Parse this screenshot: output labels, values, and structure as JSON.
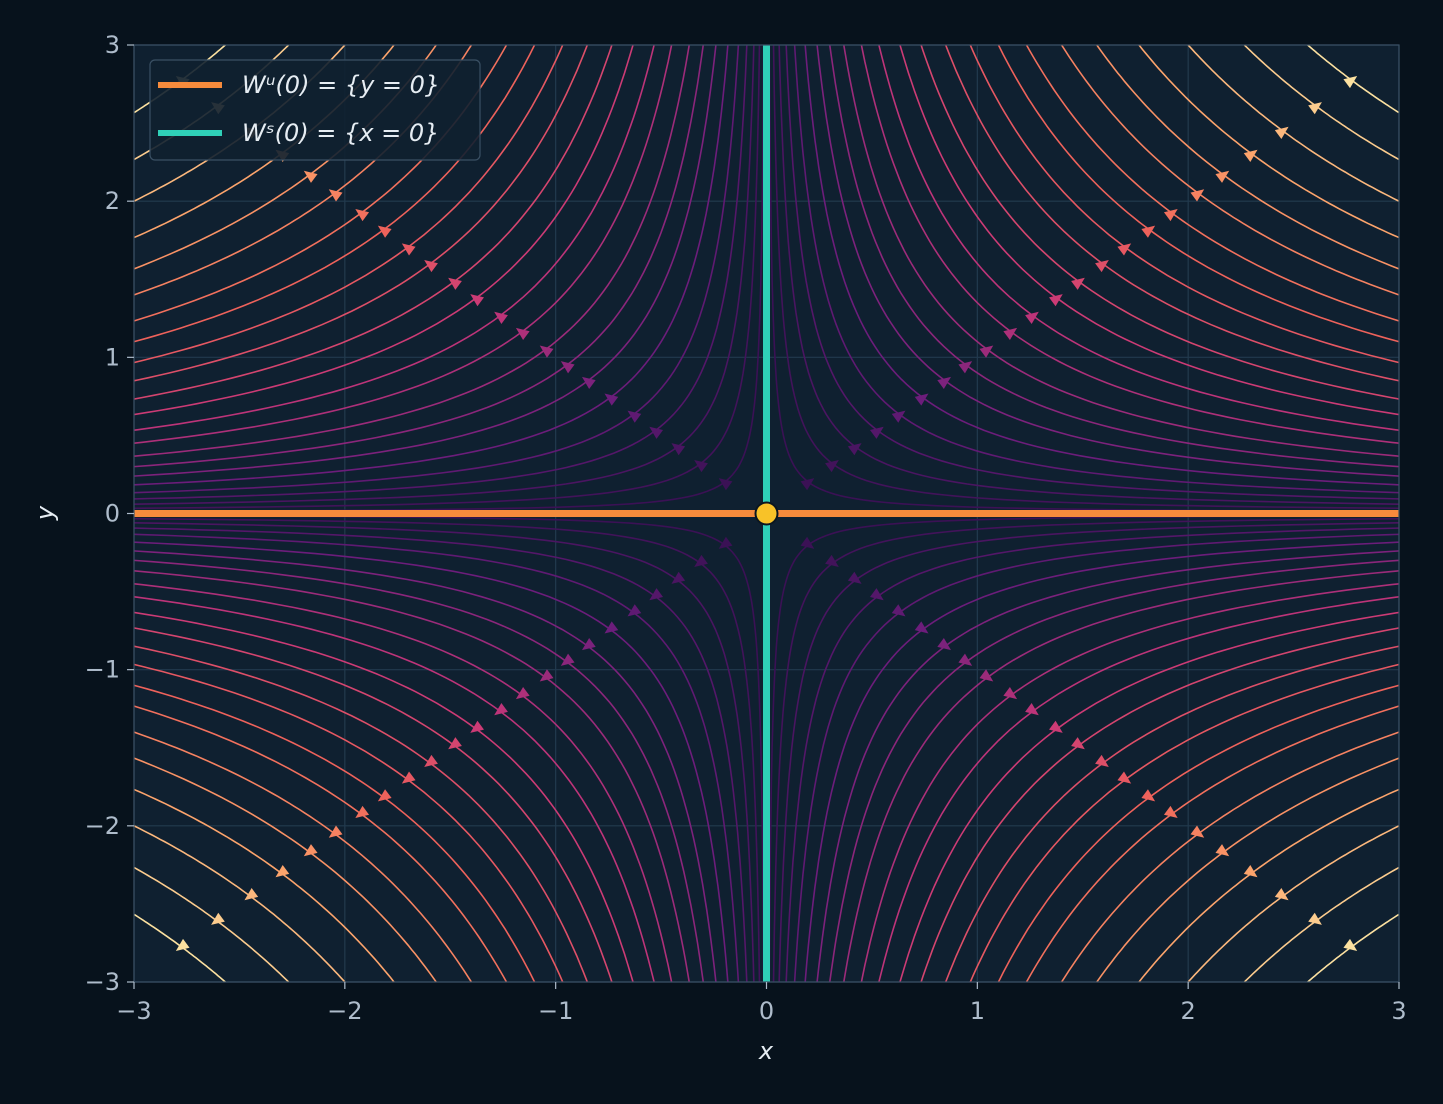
{
  "chart_data": {
    "type": "streamplot",
    "xlabel": "x",
    "ylabel": "y",
    "xlim": [
      -3,
      3
    ],
    "ylim": [
      -3,
      3
    ],
    "xticks": [
      {
        "value": -3,
        "label": "−3"
      },
      {
        "value": -2,
        "label": "−2"
      },
      {
        "value": -1,
        "label": "−1"
      },
      0,
      1,
      2,
      3
    ],
    "yticks": [
      {
        "value": -3,
        "label": "−3"
      },
      {
        "value": -2,
        "label": "−2"
      },
      {
        "value": -1,
        "label": "−1"
      },
      0,
      1,
      2,
      3
    ],
    "grid": true,
    "legend": "upper left",
    "stream_levels": [
      0.04,
      0.1,
      0.18,
      0.28,
      0.4,
      0.55,
      0.72,
      0.9,
      1.1,
      1.35,
      1.6,
      1.9,
      2.2,
      2.55,
      2.9,
      3.3,
      3.7,
      4.2,
      4.7,
      5.3,
      6.0,
      6.8,
      7.7
    ],
    "series": [
      {
        "name": "Wᵘ(0) = {y = 0}",
        "color": "#f68b3c",
        "x": [
          -3,
          3
        ],
        "y": [
          0,
          0
        ]
      },
      {
        "name": "Wˢ(0) = {x = 0}",
        "color": "#2fd0b8",
        "x": [
          0,
          0
        ],
        "y": [
          -3,
          3
        ]
      }
    ],
    "equilibrium": {
      "x": 0,
      "y": 0,
      "color": "#f8c228"
    }
  }
}
